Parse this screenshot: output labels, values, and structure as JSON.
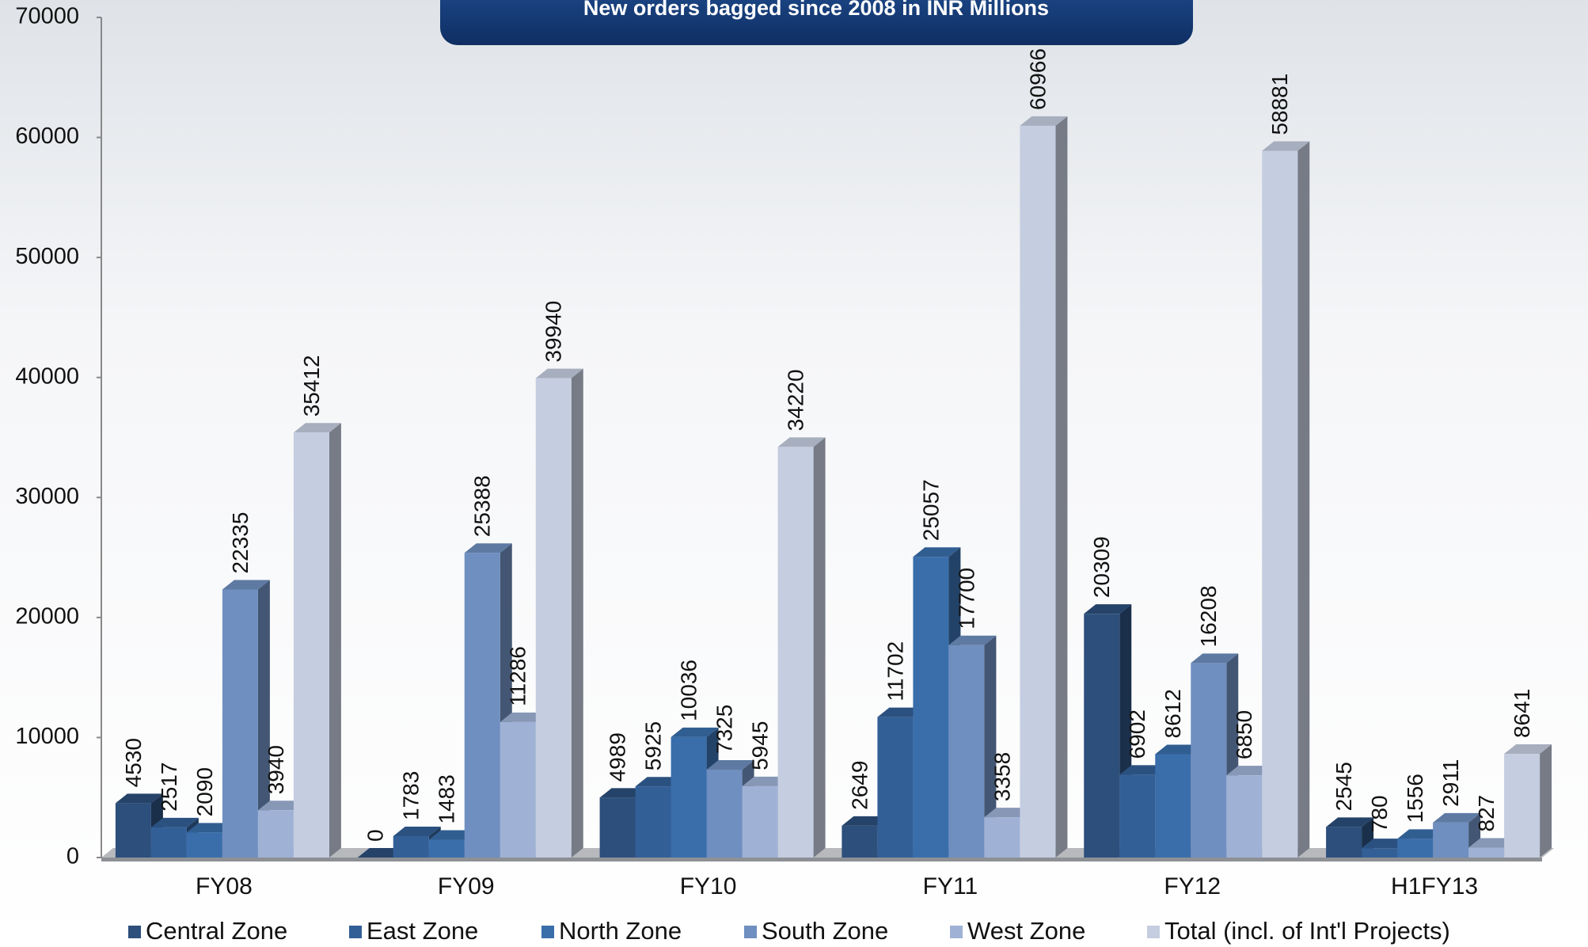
{
  "chart_data": {
    "type": "bar3d",
    "title": "New orders bagged since 2008 in INR Millions",
    "categories": [
      "FY08",
      "FY09",
      "FY10",
      "FY11",
      "FY12",
      "H1FY13"
    ],
    "series": [
      {
        "name": "Central Zone",
        "color": "#2c4f7c",
        "values": [
          4530,
          0,
          4989,
          2649,
          20309,
          2545
        ]
      },
      {
        "name": "East Zone",
        "color": "#335f97",
        "values": [
          2517,
          1783,
          5925,
          11702,
          6902,
          780
        ]
      },
      {
        "name": "North Zone",
        "color": "#3a6eab",
        "values": [
          2090,
          1483,
          10036,
          25057,
          8612,
          1556
        ]
      },
      {
        "name": "South Zone",
        "color": "#6f8fc0",
        "values": [
          22335,
          25388,
          7325,
          17700,
          16208,
          2911
        ]
      },
      {
        "name": "West Zone",
        "color": "#9fb2d6",
        "values": [
          3940,
          11286,
          5945,
          3358,
          6850,
          827
        ]
      },
      {
        "name": "Total (incl. of Int'l Projects)",
        "color": "#c5cde0",
        "values": [
          35412,
          39940,
          34220,
          60966,
          58881,
          8641
        ]
      }
    ],
    "ylim": [
      0,
      70000
    ],
    "yticks": [
      0,
      10000,
      20000,
      30000,
      40000,
      50000,
      60000,
      70000
    ]
  }
}
